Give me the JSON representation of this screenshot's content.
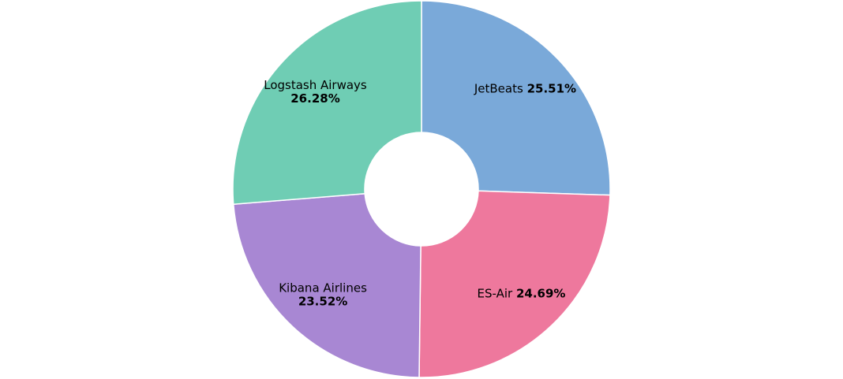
{
  "chart_data": {
    "type": "pie",
    "donut": true,
    "categories": [
      "JetBeats",
      "ES-Air",
      "Kibana Airlines",
      "Logstash Airways"
    ],
    "values": [
      25.51,
      24.69,
      23.52,
      26.28
    ],
    "value_labels": [
      "25.51%",
      "24.69%",
      "23.52%",
      "26.28%"
    ],
    "colors": [
      "#7AA9D9",
      "#EE789D",
      "#A887D3",
      "#6FCDB4"
    ],
    "legend": "none"
  }
}
